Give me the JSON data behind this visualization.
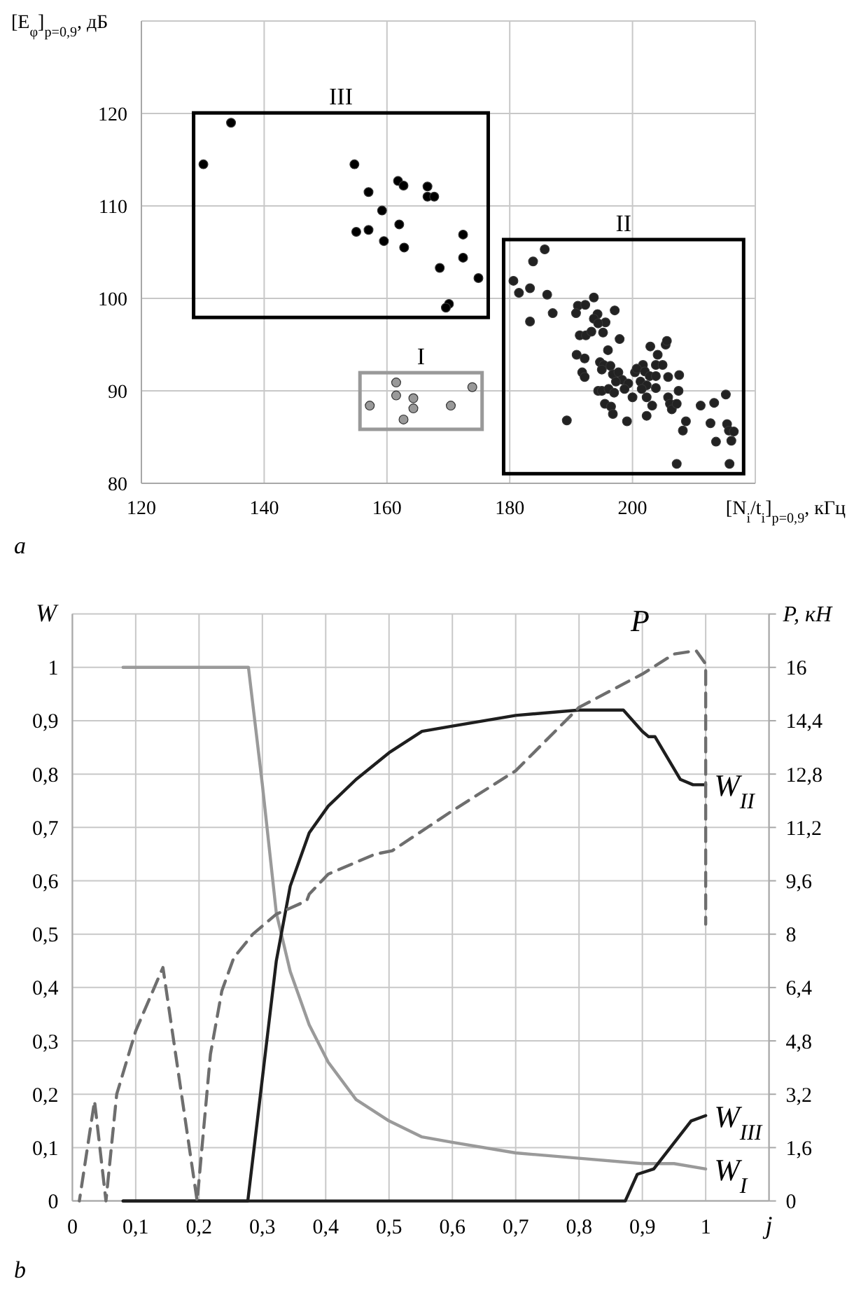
{
  "chart_data": [
    {
      "type": "scatter",
      "xlabel": "[N$_{i}$/t$_{i}$]$_{p=0,9}$, кГц",
      "ylabel": "[E$_{φ}$]$_{p=0,9}$, дБ",
      "xlim": [
        120,
        220
      ],
      "xticks": [
        120,
        140,
        160,
        180,
        200,
        {
          "value": 220,
          "label": null
        }
      ],
      "ylim": [
        80,
        130
      ],
      "yticks": [
        80,
        90,
        100,
        110,
        120,
        {
          "value": 130,
          "label": null
        }
      ],
      "grid": true,
      "marker": "circle",
      "annotations": [
        "a"
      ],
      "series": [
        {
          "name": "III",
          "color": "#000000",
          "x": [
            134.6,
            130.1,
            154.7,
            157.0,
            161.8,
            162.7,
            166.6,
            166.6,
            167.7,
            159.2,
            162.0,
            155.0,
            157.0,
            159.5,
            162.8,
            172.4,
            172.4,
            168.6,
            174.9,
            170.1,
            169.6
          ],
          "values": [
            119.0,
            114.5,
            114.5,
            111.5,
            112.7,
            112.2,
            112.1,
            111.0,
            111.0,
            109.5,
            108.0,
            107.2,
            107.4,
            106.2,
            105.5,
            106.9,
            104.4,
            103.3,
            102.2,
            99.4,
            99.0
          ]
        },
        {
          "name": "II",
          "color": "#222222",
          "x": [
            185.7,
            183.8,
            180.6,
            181.5,
            183.3,
            186.1,
            183.3,
            187.0,
            193.7,
            191.1,
            192.3,
            190.8,
            194.3,
            193.7,
            197.1,
            195.6,
            194.4,
            191.4,
            192.4,
            193.3,
            195.2,
            197.9,
            196.0,
            190.9,
            192.2,
            194.7,
            195.3,
            196.4,
            195.0,
            191.8,
            192.2,
            196.8,
            197.7,
            198.3,
            199.3,
            197.3,
            200.4,
            201.7,
            200.7,
            202.0,
            202.8,
            203.8,
            203.8,
            204.9,
            202.9,
            204.1,
            205.4,
            205.6,
            201.3,
            202.3,
            203.8,
            205.8,
            207.6,
            194.4,
            195.0,
            196.1,
            197.0,
            198.7,
            201.5,
            200.0,
            202.3,
            203.2,
            205.8,
            206.1,
            206.4,
            207.2,
            207.5,
            195.5,
            196.5,
            196.8,
            202.3,
            199.1,
            189.3,
            208.7,
            208.2,
            211.1,
            213.3,
            215.2,
            212.7,
            215.4,
            215.7,
            216.5,
            216.1,
            213.6,
            207.2,
            215.8
          ],
          "values": [
            105.3,
            104.0,
            101.9,
            100.6,
            101.1,
            100.4,
            97.5,
            98.4,
            100.1,
            99.2,
            99.3,
            98.4,
            98.3,
            97.8,
            98.7,
            97.4,
            97.3,
            96.0,
            96.0,
            96.4,
            96.3,
            95.6,
            94.4,
            93.9,
            93.5,
            93.1,
            92.8,
            92.7,
            92.3,
            92.0,
            91.5,
            91.8,
            92.0,
            91.2,
            90.8,
            91.0,
            92.0,
            92.8,
            92.4,
            92.1,
            91.6,
            91.6,
            92.8,
            92.8,
            94.8,
            93.9,
            95.0,
            95.4,
            91.0,
            90.6,
            90.3,
            91.5,
            91.7,
            90.0,
            90.0,
            90.2,
            89.8,
            90.2,
            90.2,
            89.3,
            89.3,
            88.4,
            89.3,
            88.6,
            88.0,
            88.6,
            90.0,
            88.6,
            88.3,
            87.5,
            87.3,
            86.7,
            86.8,
            86.7,
            85.7,
            88.4,
            88.7,
            89.6,
            86.5,
            86.4,
            85.7,
            85.6,
            84.6,
            84.5,
            82.1,
            82.1
          ]
        },
        {
          "name": "I",
          "color": "#999999",
          "x": [
            157.2,
            161.5,
            161.5,
            164.3,
            164.3,
            162.7,
            170.4,
            173.9
          ],
          "values": [
            88.4,
            90.9,
            89.5,
            89.2,
            88.1,
            86.9,
            88.4,
            90.4
          ]
        }
      ]
    },
    {
      "type": "line",
      "xlabel": "j",
      "ylabel": "W",
      "y2label": "P, кН",
      "xlim": [
        0,
        1.1
      ],
      "xticks": [
        0,
        {
          "value": 0.1,
          "label": "0,1"
        },
        {
          "value": 0.2,
          "label": "0,2"
        },
        {
          "value": 0.3,
          "label": "0,3"
        },
        {
          "value": 0.4,
          "label": "0,4"
        },
        {
          "value": 0.5,
          "label": "0,5"
        },
        {
          "value": 0.6,
          "label": "0,6"
        },
        {
          "value": 0.7,
          "label": "0,7"
        },
        {
          "value": 0.8,
          "label": "0,8"
        },
        {
          "value": 0.9,
          "label": "0,9"
        },
        1,
        {
          "value": 1.1,
          "label": null
        }
      ],
      "ylim": [
        0,
        1.1
      ],
      "yticks": [
        0,
        {
          "value": 0.1,
          "label": "0,1"
        },
        {
          "value": 0.2,
          "label": "0,2"
        },
        {
          "value": 0.3,
          "label": "0,3"
        },
        {
          "value": 0.4,
          "label": "0,4"
        },
        {
          "value": 0.5,
          "label": "0,5"
        },
        {
          "value": 0.6,
          "label": "0,6"
        },
        {
          "value": 0.7,
          "label": "0,7"
        },
        {
          "value": 0.8,
          "label": "0,8"
        },
        {
          "value": 0.9,
          "label": "0,9"
        },
        1,
        {
          "value": 1.1,
          "label": null
        }
      ],
      "y2lim": [
        0,
        17.6
      ],
      "y2ticks": [
        0,
        {
          "value": 1.6,
          "label": "1,6"
        },
        {
          "value": 3.2,
          "label": "3,2"
        },
        {
          "value": 4.8,
          "label": "4,8"
        },
        {
          "value": 6.4,
          "label": "6,4"
        },
        8,
        {
          "value": 9.6,
          "label": "9,6"
        },
        {
          "value": 11.2,
          "label": "11,2"
        },
        {
          "value": 12.8,
          "label": "12,8"
        },
        {
          "value": 14.4,
          "label": "14,4"
        },
        16,
        {
          "value": 17.6,
          "label": null
        }
      ],
      "grid": true,
      "annotations": [
        "b"
      ],
      "series": [
        {
          "name": "W$_{I}$",
          "color": "#9a9a9a",
          "x": [
            0.08,
            0.27,
            0.278,
            0.3,
            0.322,
            0.344,
            0.374,
            0.404,
            0.448,
            0.5,
            0.552,
            0.6,
            0.7,
            0.8,
            0.9,
            0.95,
            1.0
          ],
          "values": [
            1,
            1,
            1,
            0.78,
            0.54,
            0.43,
            0.33,
            0.26,
            0.19,
            0.15,
            0.12,
            0.11,
            0.09,
            0.08,
            0.07,
            0.07,
            0.06
          ]
        },
        {
          "name": "W$_{II}$",
          "color": "#1e1e1e",
          "x": [
            0.08,
            0.277,
            0.3,
            0.322,
            0.344,
            0.374,
            0.404,
            0.448,
            0.5,
            0.552,
            0.6,
            0.7,
            0.8,
            0.87,
            0.9,
            0.91,
            0.92,
            0.96,
            0.98,
            1.0
          ],
          "values": [
            0,
            0,
            0.23,
            0.45,
            0.59,
            0.69,
            0.74,
            0.79,
            0.84,
            0.88,
            0.89,
            0.91,
            0.92,
            0.92,
            0.88,
            0.87,
            0.87,
            0.79,
            0.78,
            0.78
          ]
        },
        {
          "name": "W$_{III}$",
          "color": "#1e1e1e",
          "x": [
            0.08,
            0.873,
            0.892,
            0.918,
            0.977,
            1.0
          ],
          "values": [
            0,
            0,
            0.05,
            0.06,
            0.15,
            0.16
          ]
        },
        {
          "name": "P",
          "color": "#6e6e6e",
          "axis": "y2",
          "line_style": "dashed",
          "x": [
            0.011,
            0.035,
            0.053,
            0.07,
            0.1,
            0.143,
            0.197,
            0.218,
            0.236,
            0.255,
            0.285,
            0.322,
            0.37,
            0.374,
            0.404,
            0.478,
            0.505,
            0.6,
            0.7,
            0.8,
            0.9,
            0.95,
            0.985,
            1.0,
            1.0
          ],
          "values": [
            0,
            3.0,
            0,
            3.2,
            5.1,
            7.0,
            0,
            4.4,
            6.3,
            7.3,
            8.0,
            8.6,
            9.0,
            9.2,
            9.8,
            10.4,
            10.5,
            11.7,
            12.9,
            14.8,
            15.8,
            16.4,
            16.5,
            16.1,
            8.3
          ]
        }
      ]
    }
  ]
}
